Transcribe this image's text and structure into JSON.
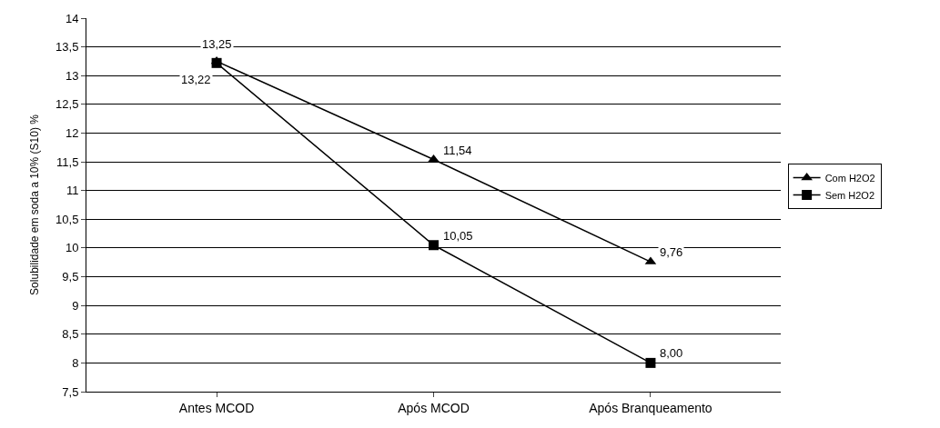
{
  "chart_data": {
    "type": "line",
    "ylabel": "Solubilidade em soda a 10% (S10) %",
    "categories": [
      "Antes MCOD",
      "Após MCOD",
      "Após Branqueamento"
    ],
    "series": [
      {
        "name": "Com H2O2",
        "color": "#000000",
        "marker": "triangle",
        "values": [
          13.25,
          11.54,
          9.76
        ],
        "value_labels": [
          "13,25",
          "11,54",
          "9,76"
        ]
      },
      {
        "name": "Sem H2O2",
        "color": "#000000",
        "marker": "square",
        "values": [
          13.22,
          10.05,
          8.0
        ],
        "value_labels": [
          "13,22",
          "10,05",
          "8,00"
        ]
      }
    ],
    "ylim": [
      7.5,
      14
    ],
    "yticks": [
      {
        "value": 7.5,
        "label": "7,5"
      },
      8,
      {
        "value": 8.5,
        "label": "8,5"
      },
      9,
      {
        "value": 9.5,
        "label": "9,5"
      },
      10,
      {
        "value": 10.5,
        "label": "10,5"
      },
      11,
      {
        "value": 11.5,
        "label": "11,5"
      },
      12,
      {
        "value": 12.5,
        "label": "12,5"
      },
      13,
      {
        "value": 13.5,
        "label": "13,5"
      },
      14
    ],
    "grid": "y",
    "legend": "right",
    "line_style": "solid"
  }
}
